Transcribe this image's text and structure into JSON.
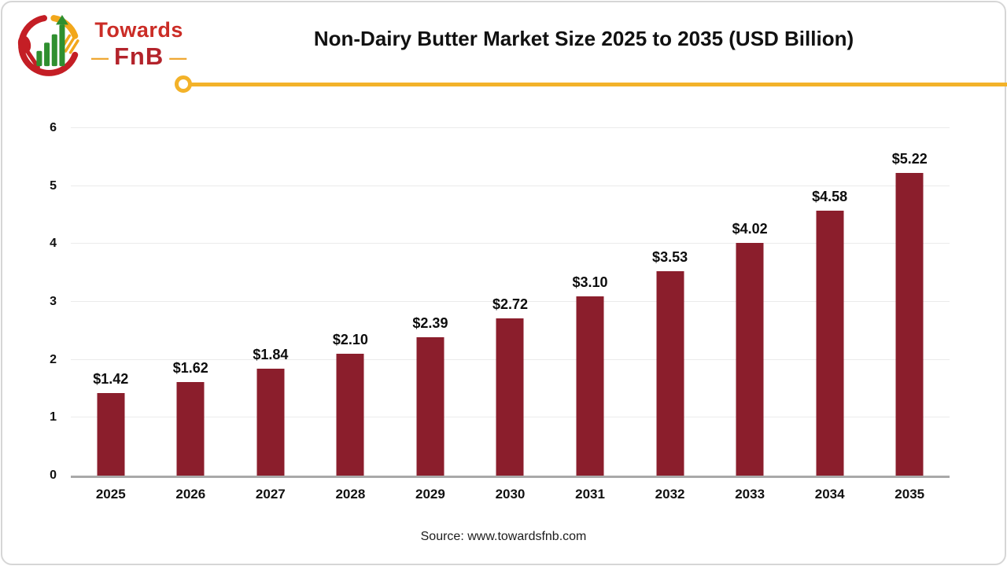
{
  "slide": {
    "title": "Non-Dairy Butter Market Size 2025 to 2035 (USD Billion)",
    "source": "Source: www.towardsfnb.com"
  },
  "logo": {
    "brand_line1": "Towards",
    "brand_line2": "FnB",
    "dash": "—"
  },
  "chart_data": {
    "type": "bar",
    "title": "Non-Dairy Butter Market Size 2025 to 2035 (USD Billion)",
    "categories": [
      "2025",
      "2026",
      "2027",
      "2028",
      "2029",
      "2030",
      "2031",
      "2032",
      "2033",
      "2034",
      "2035"
    ],
    "values": [
      1.42,
      1.62,
      1.84,
      2.1,
      2.39,
      2.72,
      3.1,
      3.53,
      4.02,
      4.58,
      5.22
    ],
    "value_labels": [
      "$1.42",
      "$1.62",
      "$1.84",
      "$2.10",
      "$2.39",
      "$2.72",
      "$3.10",
      "$3.53",
      "$4.02",
      "$4.58",
      "$5.22"
    ],
    "unit": "USD Billion",
    "xlabel": "",
    "ylabel": "",
    "ylim": [
      0,
      6
    ],
    "yticks": [
      0,
      1,
      2,
      3,
      4,
      5,
      6
    ],
    "grid": true,
    "legend": false,
    "bar_color": "#8b1e2c"
  },
  "colors": {
    "bar": "#8b1e2c",
    "accent_line": "#f3b229",
    "axis": "#a9a9a9",
    "gridline": "#ebebeb",
    "logo_red": "#c41e25",
    "logo_green": "#2f8f2f",
    "logo_yellow": "#f2a71b"
  }
}
